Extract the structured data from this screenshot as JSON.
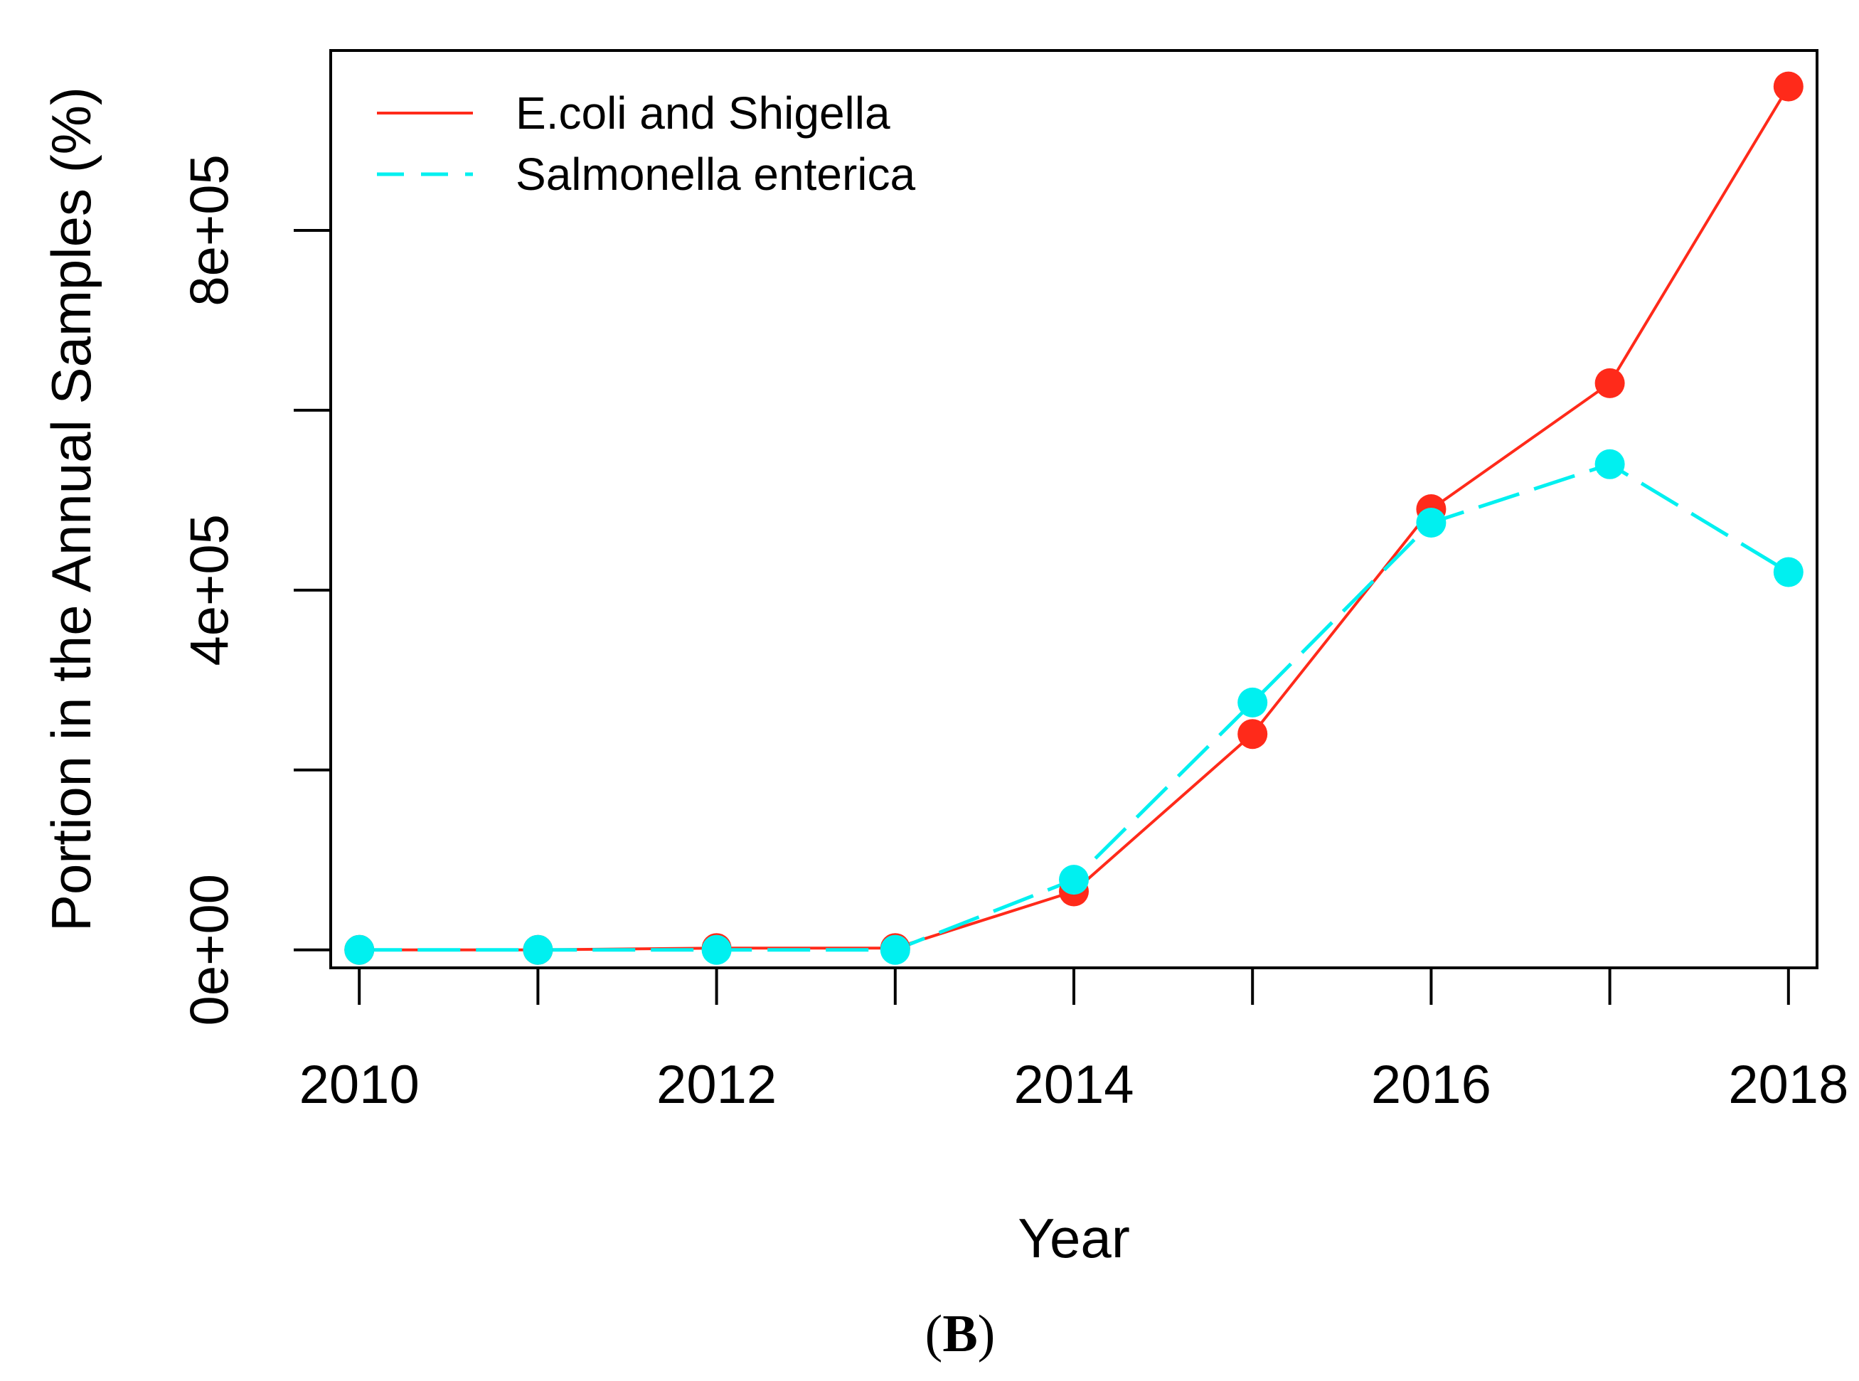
{
  "chart_data": {
    "type": "line",
    "x": [
      2010,
      2011,
      2012,
      2013,
      2014,
      2015,
      2016,
      2017,
      2018
    ],
    "series": [
      {
        "name": "E.coli and Shigella",
        "color": "#ff2a1a",
        "line_style": "solid",
        "values": [
          0,
          0,
          2000,
          2000,
          65000,
          240000,
          490000,
          630000,
          960000
        ]
      },
      {
        "name": "Salmonella enterica",
        "color": "#00f0f0",
        "line_style": "dashed",
        "values": [
          0,
          0,
          0,
          0,
          78000,
          275000,
          475000,
          540000,
          420000
        ]
      }
    ],
    "xlabel": "Year",
    "ylabel": "Portion in the Annual Samples (%)",
    "xlim": [
      2009.84,
      2018.16
    ],
    "ylim": [
      -20000,
      1000000
    ],
    "x_ticks": [
      2010,
      2011,
      2012,
      2013,
      2014,
      2015,
      2016,
      2017,
      2018
    ],
    "x_tick_labels": [
      "2010",
      "",
      "2012",
      "",
      "2014",
      "",
      "2016",
      "",
      "2018"
    ],
    "y_ticks": [
      0,
      200000,
      400000,
      600000,
      800000
    ],
    "y_tick_labels": [
      "0e+00",
      "",
      "4e+05",
      "",
      "8e+05"
    ],
    "legend_position": "top-left",
    "grid": false
  },
  "caption": {
    "open": "(",
    "letter": "B",
    "close": ")"
  }
}
